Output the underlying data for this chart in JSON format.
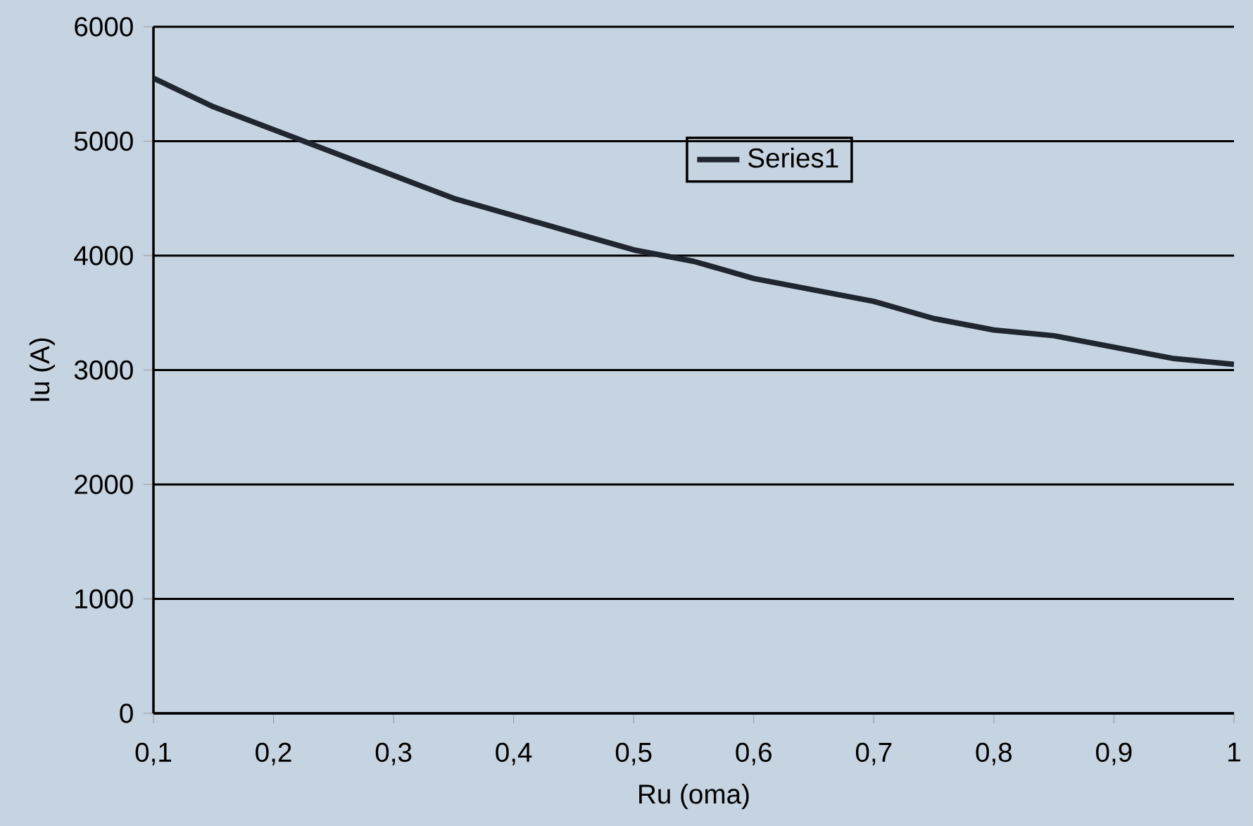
{
  "chart_data": {
    "type": "line",
    "xlabel": "Ru (oma)",
    "ylabel": "Iu (A)",
    "x": [
      0.1,
      0.15,
      0.2,
      0.25,
      0.3,
      0.35,
      0.4,
      0.45,
      0.5,
      0.55,
      0.6,
      0.65,
      0.7,
      0.75,
      0.8,
      0.85,
      0.9,
      0.95,
      1.0
    ],
    "series": [
      {
        "name": "Series1",
        "color": "#1f2630",
        "values": [
          5550,
          5300,
          5100,
          4900,
          4700,
          4500,
          4350,
          4200,
          4050,
          3950,
          3800,
          3700,
          3600,
          3450,
          3350,
          3300,
          3200,
          3100,
          3050
        ]
      }
    ],
    "xlim": [
      0.1,
      1
    ],
    "xticks": [
      {
        "value": 0.1,
        "label": "0,1"
      },
      {
        "value": 0.2,
        "label": "0,2"
      },
      {
        "value": 0.3,
        "label": "0,3"
      },
      {
        "value": 0.4,
        "label": "0,4"
      },
      {
        "value": 0.5,
        "label": "0,5"
      },
      {
        "value": 0.6,
        "label": "0,6"
      },
      {
        "value": 0.7,
        "label": "0,7"
      },
      {
        "value": 0.8,
        "label": "0,8"
      },
      {
        "value": 0.9,
        "label": "0,9"
      },
      1
    ],
    "ylim": [
      0,
      6000
    ],
    "yticks": [
      0,
      1000,
      2000,
      3000,
      4000,
      5000,
      6000
    ],
    "grid": "y",
    "legend": "top",
    "marker": "none",
    "line_style": "solid"
  }
}
